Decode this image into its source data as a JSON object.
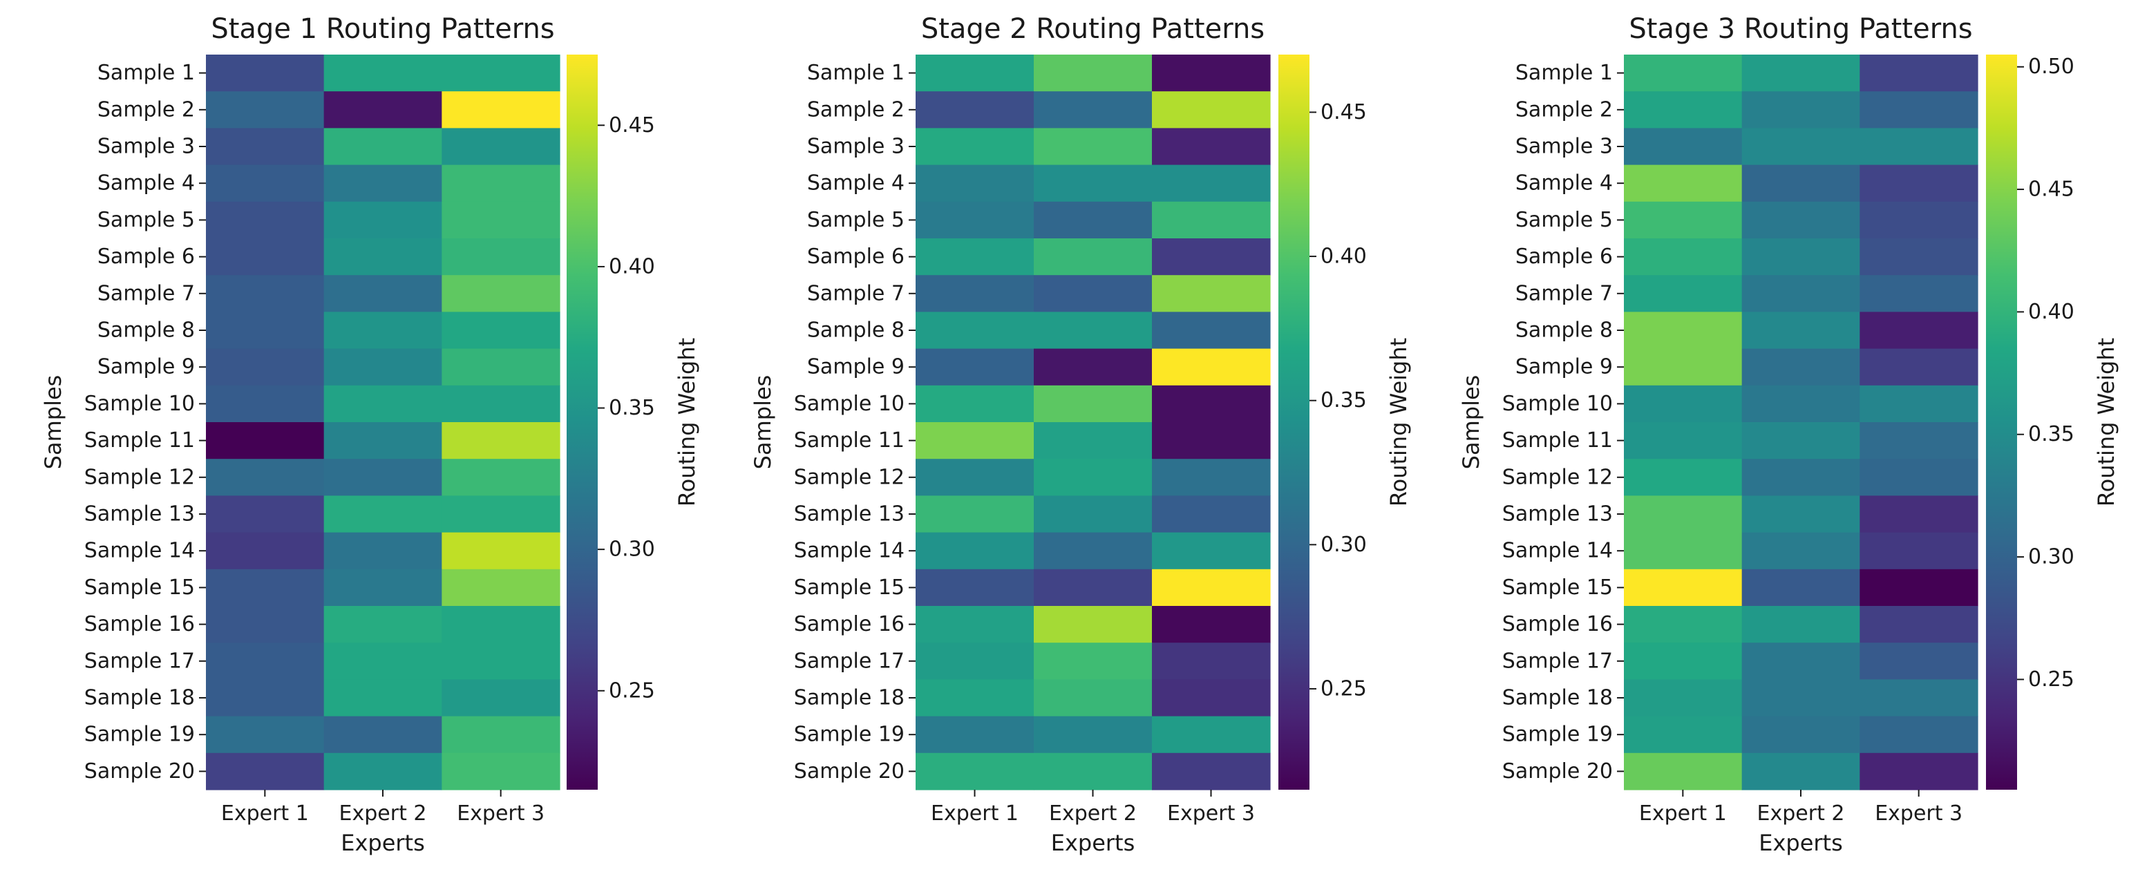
{
  "chart_data": [
    {
      "type": "heatmap",
      "title": "Stage 1 Routing Patterns",
      "xlabel": "Experts",
      "ylabel": "Samples",
      "colorbar_label": "Routing Weight",
      "colormap": "viridis",
      "x": [
        "Expert 1",
        "Expert 2",
        "Expert 3"
      ],
      "y": [
        "Sample 1",
        "Sample 2",
        "Sample 3",
        "Sample 4",
        "Sample 5",
        "Sample 6",
        "Sample 7",
        "Sample 8",
        "Sample 9",
        "Sample 10",
        "Sample 11",
        "Sample 12",
        "Sample 13",
        "Sample 14",
        "Sample 15",
        "Sample 16",
        "Sample 17",
        "Sample 18",
        "Sample 19",
        "Sample 20"
      ],
      "values": [
        [
          0.275,
          0.37,
          0.37
        ],
        [
          0.3,
          0.23,
          0.475
        ],
        [
          0.28,
          0.38,
          0.35
        ],
        [
          0.29,
          0.32,
          0.39
        ],
        [
          0.28,
          0.345,
          0.39
        ],
        [
          0.28,
          0.35,
          0.385
        ],
        [
          0.29,
          0.31,
          0.41
        ],
        [
          0.29,
          0.35,
          0.37
        ],
        [
          0.285,
          0.335,
          0.385
        ],
        [
          0.29,
          0.365,
          0.365
        ],
        [
          0.215,
          0.33,
          0.445
        ],
        [
          0.305,
          0.31,
          0.39
        ],
        [
          0.265,
          0.375,
          0.375
        ],
        [
          0.26,
          0.315,
          0.45
        ],
        [
          0.285,
          0.32,
          0.425
        ],
        [
          0.285,
          0.375,
          0.37
        ],
        [
          0.29,
          0.37,
          0.37
        ],
        [
          0.29,
          0.37,
          0.355
        ],
        [
          0.31,
          0.3,
          0.39
        ],
        [
          0.265,
          0.35,
          0.395
        ]
      ],
      "vmin": 0.215,
      "vmax": 0.475,
      "colorbar_ticks": [
        0.25,
        0.3,
        0.35,
        0.4,
        0.45
      ]
    },
    {
      "type": "heatmap",
      "title": "Stage 2 Routing Patterns",
      "xlabel": "Experts",
      "ylabel": "Samples",
      "colorbar_label": "Routing Weight",
      "colormap": "viridis",
      "x": [
        "Expert 1",
        "Expert 2",
        "Expert 3"
      ],
      "y": [
        "Sample 1",
        "Sample 2",
        "Sample 3",
        "Sample 4",
        "Sample 5",
        "Sample 6",
        "Sample 7",
        "Sample 8",
        "Sample 9",
        "Sample 10",
        "Sample 11",
        "Sample 12",
        "Sample 13",
        "Sample 14",
        "Sample 15",
        "Sample 16",
        "Sample 17",
        "Sample 18",
        "Sample 19",
        "Sample 20"
      ],
      "values": [
        [
          0.365,
          0.405,
          0.225
        ],
        [
          0.275,
          0.305,
          0.44
        ],
        [
          0.37,
          0.395,
          0.24
        ],
        [
          0.325,
          0.34,
          0.34
        ],
        [
          0.32,
          0.3,
          0.385
        ],
        [
          0.36,
          0.385,
          0.26
        ],
        [
          0.3,
          0.29,
          0.425
        ],
        [
          0.355,
          0.355,
          0.3
        ],
        [
          0.295,
          0.23,
          0.47
        ],
        [
          0.37,
          0.405,
          0.225
        ],
        [
          0.42,
          0.36,
          0.225
        ],
        [
          0.33,
          0.365,
          0.31
        ],
        [
          0.385,
          0.34,
          0.29
        ],
        [
          0.345,
          0.305,
          0.35
        ],
        [
          0.28,
          0.265,
          0.47
        ],
        [
          0.36,
          0.435,
          0.22
        ],
        [
          0.355,
          0.39,
          0.255
        ],
        [
          0.365,
          0.385,
          0.25
        ],
        [
          0.32,
          0.33,
          0.355
        ],
        [
          0.375,
          0.375,
          0.26
        ]
      ],
      "vmin": 0.215,
      "vmax": 0.47,
      "colorbar_ticks": [
        0.25,
        0.3,
        0.35,
        0.4,
        0.45
      ]
    },
    {
      "type": "heatmap",
      "title": "Stage 3 Routing Patterns",
      "xlabel": "Experts",
      "ylabel": "Samples",
      "colorbar_label": "Routing Weight",
      "colormap": "viridis",
      "x": [
        "Expert 1",
        "Expert 2",
        "Expert 3"
      ],
      "y": [
        "Sample 1",
        "Sample 2",
        "Sample 3",
        "Sample 4",
        "Sample 5",
        "Sample 6",
        "Sample 7",
        "Sample 8",
        "Sample 9",
        "Sample 10",
        "Sample 11",
        "Sample 12",
        "Sample 13",
        "Sample 14",
        "Sample 15",
        "Sample 16",
        "Sample 17",
        "Sample 18",
        "Sample 19",
        "Sample 20"
      ],
      "values": [
        [
          0.4,
          0.37,
          0.265
        ],
        [
          0.38,
          0.335,
          0.3
        ],
        [
          0.325,
          0.345,
          0.345
        ],
        [
          0.445,
          0.305,
          0.265
        ],
        [
          0.41,
          0.325,
          0.275
        ],
        [
          0.395,
          0.34,
          0.28
        ],
        [
          0.38,
          0.325,
          0.3
        ],
        [
          0.445,
          0.345,
          0.23
        ],
        [
          0.445,
          0.315,
          0.26
        ],
        [
          0.355,
          0.325,
          0.34
        ],
        [
          0.36,
          0.345,
          0.31
        ],
        [
          0.385,
          0.32,
          0.305
        ],
        [
          0.425,
          0.345,
          0.245
        ],
        [
          0.425,
          0.33,
          0.255
        ],
        [
          0.505,
          0.29,
          0.205
        ],
        [
          0.39,
          0.365,
          0.26
        ],
        [
          0.385,
          0.325,
          0.29
        ],
        [
          0.37,
          0.325,
          0.325
        ],
        [
          0.375,
          0.32,
          0.305
        ],
        [
          0.435,
          0.345,
          0.235
        ]
      ],
      "vmin": 0.205,
      "vmax": 0.505,
      "colorbar_ticks": [
        0.25,
        0.3,
        0.35,
        0.4,
        0.45,
        0.5
      ]
    }
  ]
}
